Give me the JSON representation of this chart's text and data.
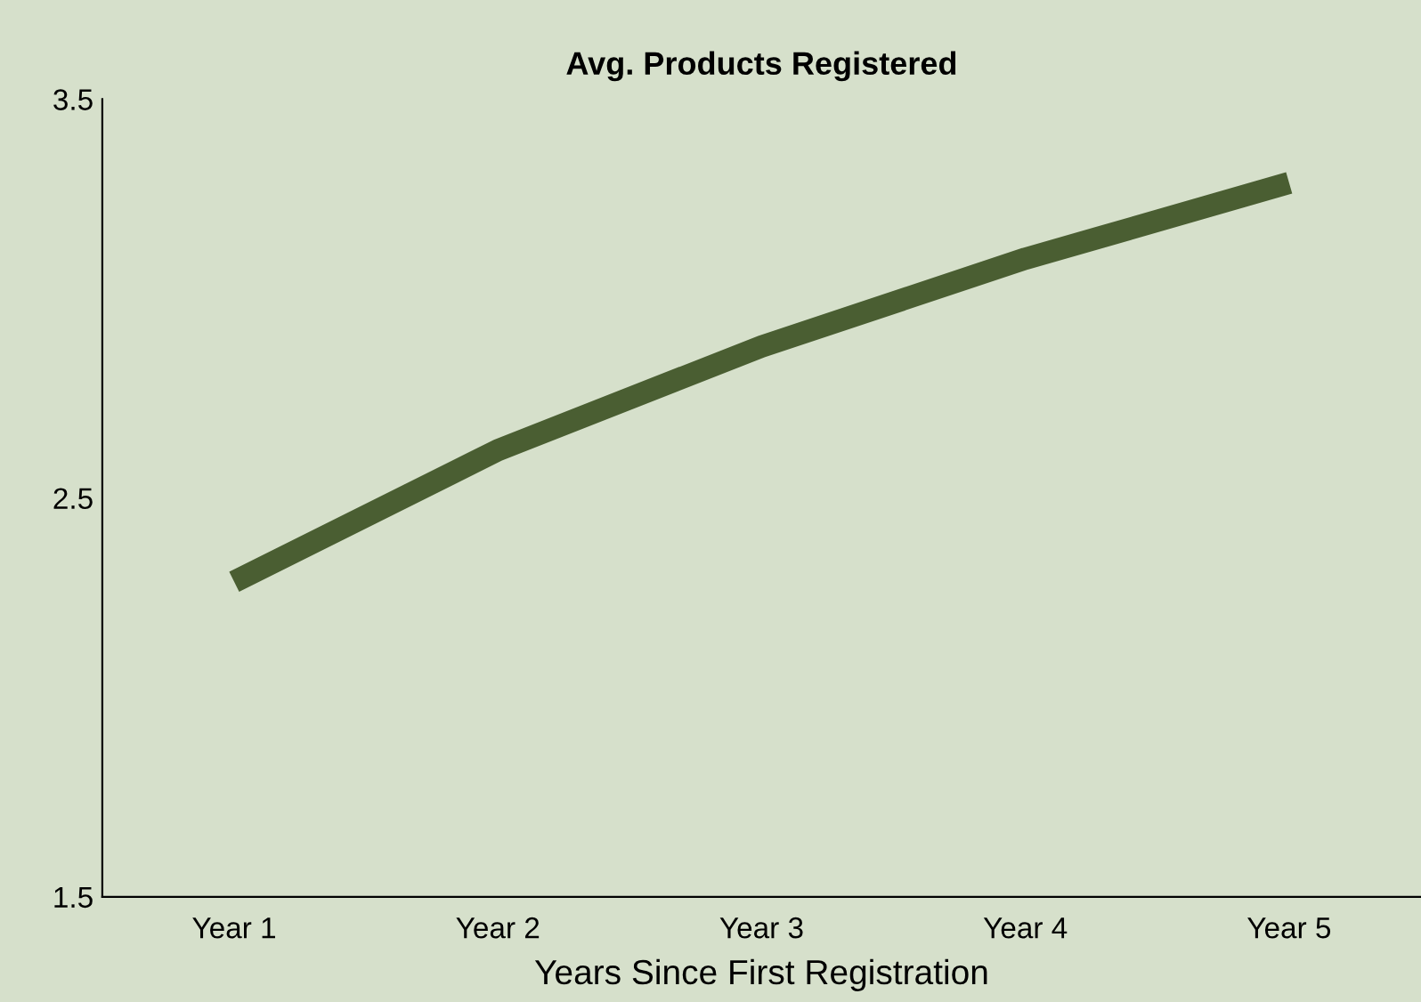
{
  "chart_data": {
    "type": "line",
    "title": "Avg. Products Registered",
    "xlabel": "Years Since First Registration",
    "categories": [
      "Year 1",
      "Year 2",
      "Year 3",
      "Year 4",
      "Year 5"
    ],
    "series": [
      {
        "color": "#4a5e32",
        "values": [
          2.29,
          2.62,
          2.88,
          3.1,
          3.29
        ]
      }
    ],
    "ylim": [
      1.5,
      3.5
    ],
    "yticks": [
      1.5,
      2.5,
      3.5
    ],
    "marker": "none",
    "line_style": "solid"
  }
}
